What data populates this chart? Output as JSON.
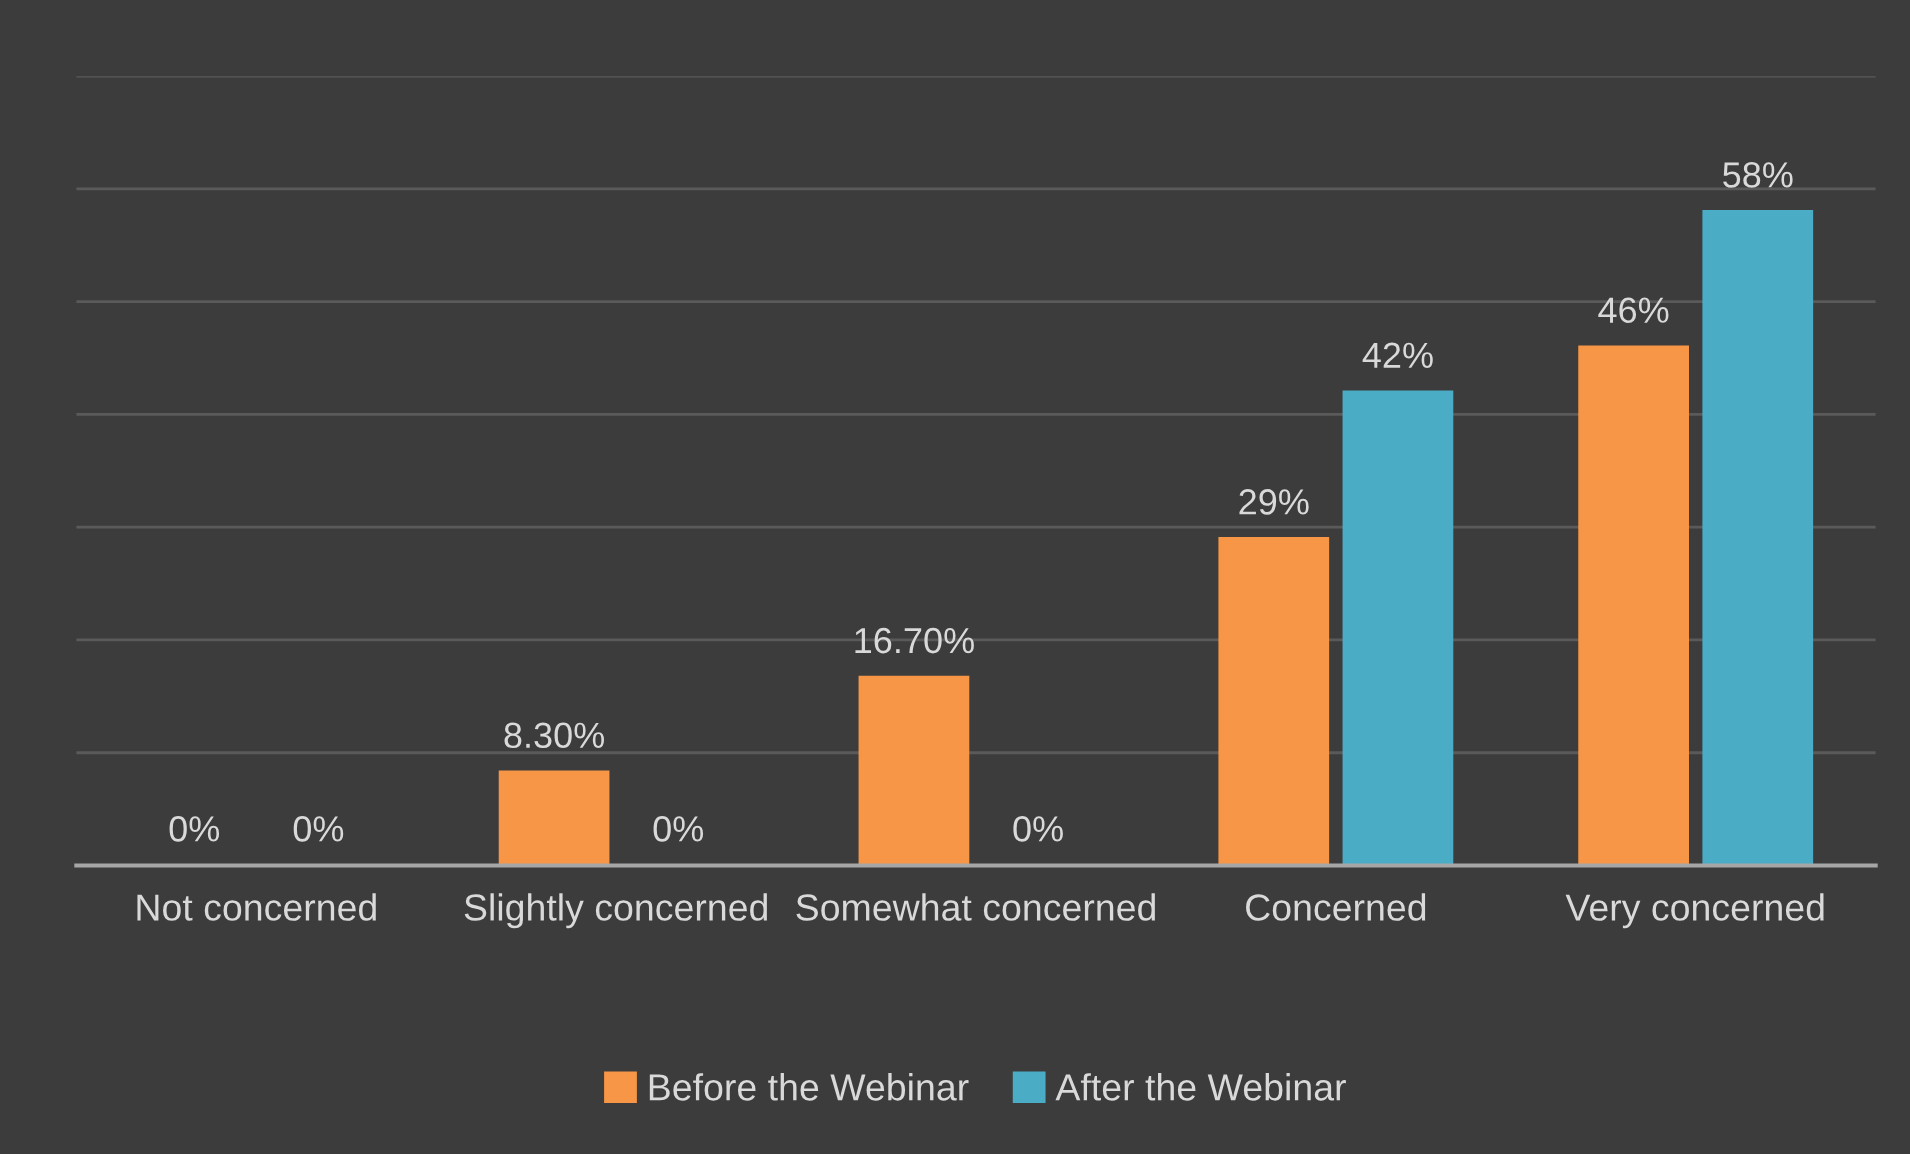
{
  "chart_data": {
    "type": "bar",
    "categories": [
      "Not concerned",
      "Slightly concerned",
      "Somewhat concerned",
      "Concerned",
      "Very concerned"
    ],
    "series": [
      {
        "name": "Before the Webinar",
        "color": "#f79646",
        "values": [
          0,
          8.3,
          16.7,
          29,
          46
        ],
        "value_labels": [
          "0%",
          "8.30%",
          "16.70%",
          "29%",
          "46%"
        ]
      },
      {
        "name": "After the Webinar",
        "color": "#4bacc6",
        "values": [
          0,
          0,
          0,
          42,
          58
        ],
        "value_labels": [
          "0%",
          "0%",
          "0%",
          "42%",
          "58%"
        ]
      }
    ],
    "ylim": [
      0,
      70
    ],
    "yticks": [
      {
        "value": 0,
        "label": null
      },
      {
        "value": 10,
        "label": null
      },
      {
        "value": 20,
        "label": null
      },
      {
        "value": 30,
        "label": null
      },
      {
        "value": 40,
        "label": null
      },
      {
        "value": 50,
        "label": null
      },
      {
        "value": 60,
        "label": null
      },
      {
        "value": 70,
        "label": null
      }
    ],
    "grid": "y",
    "legend": "bottom",
    "tick_labels": "x"
  }
}
